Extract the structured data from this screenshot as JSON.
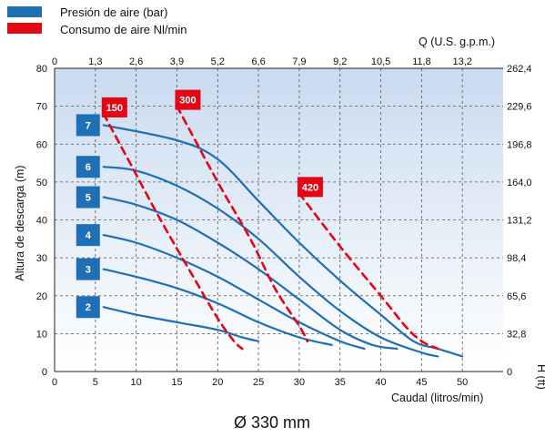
{
  "legend": [
    {
      "label": "Presión de aire (bar)",
      "color": "#1f6fb4"
    },
    {
      "label": "Consumo de aire Nl/min",
      "color": "#e30613"
    }
  ],
  "caption": "Ø 330 mm",
  "chart_data": {
    "type": "line",
    "xlabel": "Caudal (litros/min)",
    "x2label": "Q (U.S. g.p.m.)",
    "ylabel": "Altura de descarga (m)",
    "y2label": "H (ft)",
    "xlim": [
      0,
      55
    ],
    "ylim": [
      0,
      80
    ],
    "x_ticks": [
      "0",
      "5",
      "10",
      "15",
      "20",
      "25",
      "30",
      "35",
      "40",
      "45",
      "50"
    ],
    "x_tick_values": [
      0,
      5,
      10,
      15,
      20,
      25,
      30,
      35,
      40,
      45,
      50
    ],
    "x2_ticks": [
      "0",
      "1,3",
      "2,6",
      "3,9",
      "5,2",
      "6,6",
      "7,9",
      "9,2",
      "10,5",
      "11,8",
      "13,2"
    ],
    "y_ticks": [
      "0",
      "10",
      "20",
      "30",
      "40",
      "50",
      "60",
      "70",
      "80"
    ],
    "y_tick_values": [
      0,
      10,
      20,
      30,
      40,
      50,
      60,
      70,
      80
    ],
    "y2_ticks": [
      "0",
      "32,8",
      "65,6",
      "98,4",
      "131,2",
      "164,0",
      "196,8",
      "229,6",
      "262,4"
    ],
    "y2_tick_values": [
      0,
      10,
      20,
      30,
      40,
      50,
      60,
      70,
      80
    ],
    "grid": true,
    "pressure_curves": [
      {
        "name": "7",
        "points": [
          [
            6,
            65
          ],
          [
            15,
            61
          ],
          [
            20,
            56
          ],
          [
            25,
            45
          ],
          [
            30,
            34
          ],
          [
            35,
            24
          ],
          [
            40,
            15
          ],
          [
            44,
            8
          ],
          [
            47,
            6
          ],
          [
            50,
            4
          ]
        ]
      },
      {
        "name": "6",
        "points": [
          [
            6,
            54
          ],
          [
            10,
            53
          ],
          [
            15,
            49
          ],
          [
            20,
            43
          ],
          [
            25,
            35
          ],
          [
            30,
            25
          ],
          [
            35,
            16
          ],
          [
            40,
            9
          ],
          [
            45,
            5
          ],
          [
            47,
            4
          ]
        ]
      },
      {
        "name": "5",
        "points": [
          [
            6,
            46
          ],
          [
            10,
            44
          ],
          [
            15,
            40
          ],
          [
            20,
            34
          ],
          [
            25,
            27
          ],
          [
            30,
            19
          ],
          [
            35,
            11
          ],
          [
            39,
            7
          ],
          [
            42,
            6
          ]
        ]
      },
      {
        "name": "4",
        "points": [
          [
            6,
            36
          ],
          [
            10,
            34
          ],
          [
            15,
            30
          ],
          [
            20,
            25
          ],
          [
            25,
            19
          ],
          [
            30,
            13
          ],
          [
            35,
            8
          ],
          [
            38,
            6
          ]
        ]
      },
      {
        "name": "3",
        "points": [
          [
            6,
            27
          ],
          [
            10,
            25
          ],
          [
            15,
            22
          ],
          [
            20,
            18
          ],
          [
            25,
            13
          ],
          [
            30,
            9
          ],
          [
            34,
            7
          ]
        ]
      },
      {
        "name": "2",
        "points": [
          [
            6,
            17
          ],
          [
            10,
            15
          ],
          [
            15,
            13
          ],
          [
            20,
            11
          ],
          [
            23,
            9
          ],
          [
            25,
            8
          ]
        ]
      }
    ],
    "consumption_curves": [
      {
        "name": "150",
        "points": [
          [
            6,
            68
          ],
          [
            9,
            56
          ],
          [
            13,
            40
          ],
          [
            17,
            25
          ],
          [
            20,
            14
          ],
          [
            22,
            8
          ],
          [
            23,
            6
          ]
        ]
      },
      {
        "name": "300",
        "points": [
          [
            15,
            70
          ],
          [
            20,
            50
          ],
          [
            24,
            35
          ],
          [
            27,
            22
          ],
          [
            30,
            12
          ],
          [
            31,
            8
          ]
        ]
      },
      {
        "name": "420",
        "points": [
          [
            30,
            47
          ],
          [
            35,
            33
          ],
          [
            40,
            20
          ],
          [
            43,
            12
          ],
          [
            45,
            8
          ],
          [
            47,
            6
          ]
        ]
      }
    ]
  }
}
